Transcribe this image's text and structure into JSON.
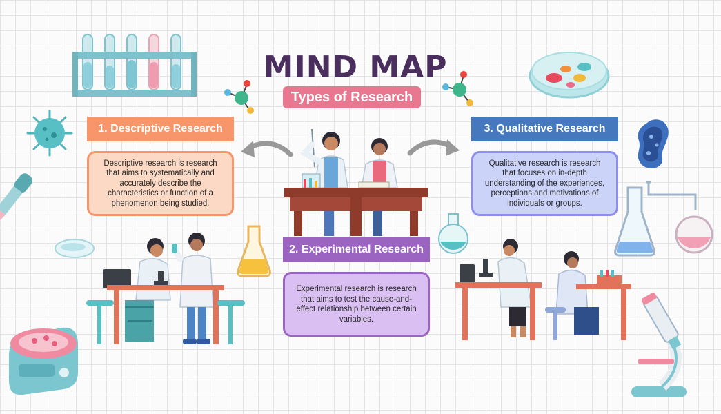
{
  "title": "MIND MAP",
  "subtitle": "Types of Research",
  "topics": [
    {
      "heading": "1. Descriptive Research",
      "text": "Descriptive research is research that aims to systematically and accurately describe the characteristics or function of a phenomenon being studied."
    },
    {
      "heading": "2. Experimental Research",
      "text": "Experimental research is research that aims to test the cause-and-effect relationship between certain variables."
    },
    {
      "heading": "3. Qualitative Research",
      "text": "Qualitative research is research that focuses on in-depth understanding of the experiences, perceptions and motivations of individuals or groups."
    }
  ],
  "colors": {
    "title": "#4a2e5e",
    "subtitle_bg": "#ea7790",
    "descriptive": "#f6966a",
    "experimental": "#9b64c1",
    "qualitative": "#4578bc"
  },
  "icons": [
    "test-tube-rack-icon",
    "virus-icon",
    "molecule-icon",
    "petri-dish-icon",
    "bacteria-icon",
    "pipette-icon",
    "flask-icon",
    "centrifuge-icon",
    "microscope-icon",
    "lab-glassware-icon",
    "arrow-left-icon",
    "arrow-right-icon"
  ]
}
